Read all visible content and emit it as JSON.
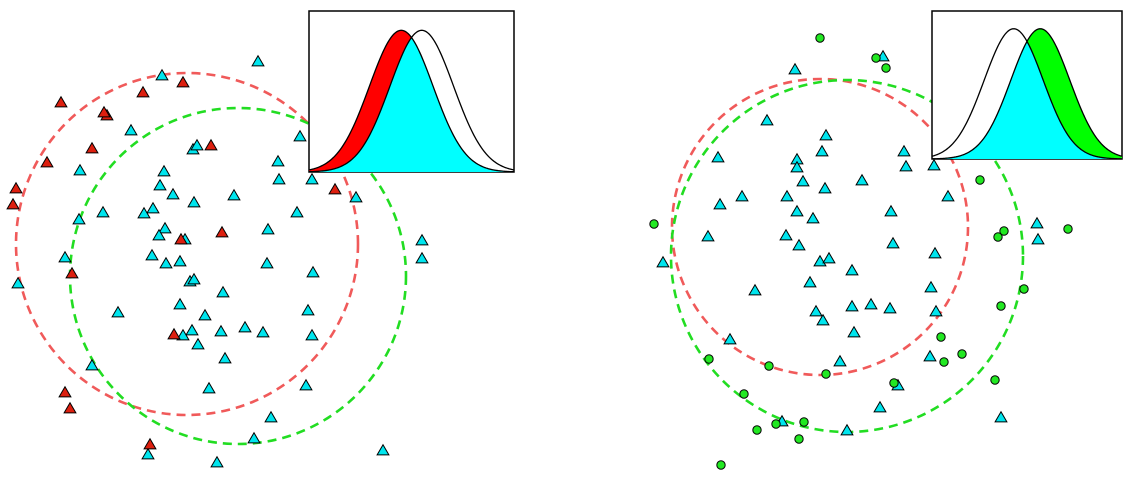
{
  "colors": {
    "background": "#ffffff",
    "ring_red": "#f05a5a",
    "ring_green": "#22dd22",
    "shared_marker": "#00e5ee",
    "red_marker": "#dd1f0f",
    "green_marker": "#22e822",
    "outline": "#000000",
    "inset_red": "#ff0000",
    "inset_green": "#00ff00",
    "inset_cyan": "#00ffff"
  },
  "panels": [
    {
      "id": "left",
      "highlight": "red",
      "marker_icons": {
        "shared": "cyan-triangle-icon",
        "highlight": "red-triangle-icon"
      },
      "rings": [
        "red-dashed-circle",
        "green-dashed-circle"
      ],
      "inset": "overlapping-bell-curves-red-shaded"
    },
    {
      "id": "right",
      "highlight": "green",
      "marker_icons": {
        "shared": "cyan-triangle-icon",
        "highlight": "green-circle-icon"
      },
      "rings": [
        "red-dashed-circle",
        "green-dashed-circle"
      ],
      "inset": "overlapping-bell-curves-green-shaded"
    }
  ]
}
